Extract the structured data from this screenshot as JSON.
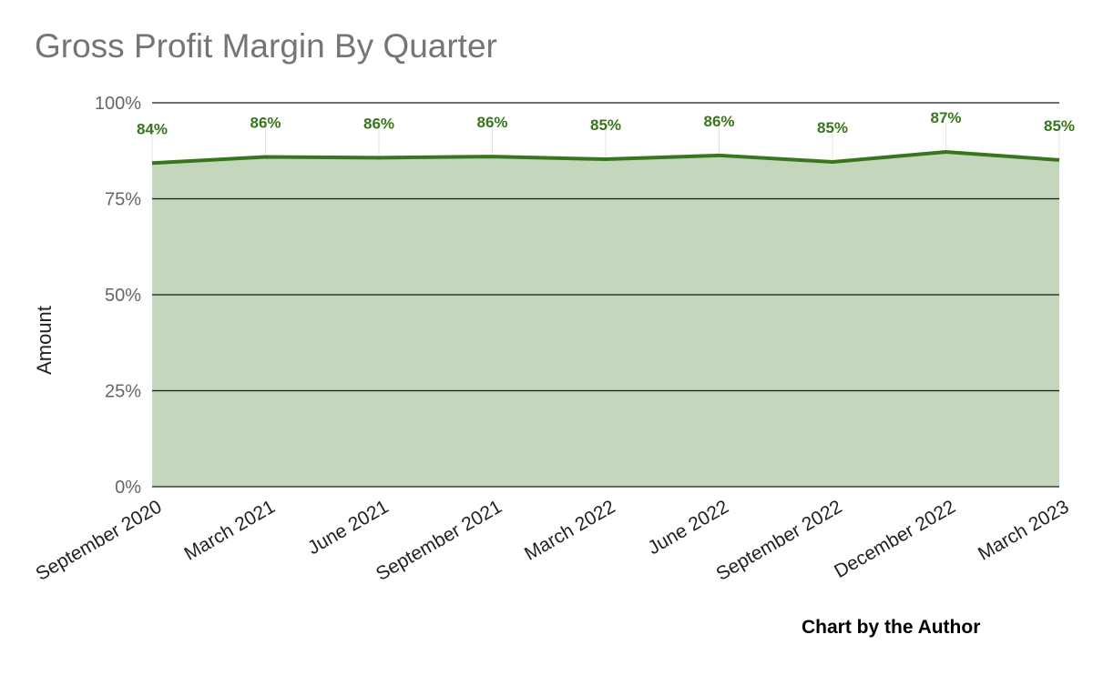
{
  "chart_data": {
    "type": "area",
    "title": "Gross Profit Margin By Quarter",
    "xlabel": "",
    "ylabel": "Amount",
    "categories": [
      "September 2020",
      "March 2021",
      "June 2021",
      "September 2021",
      "March 2022",
      "June 2022",
      "September 2022",
      "December 2022",
      "March 2023"
    ],
    "series": [
      {
        "values": [
          84.3,
          85.9,
          85.7,
          86.0,
          85.3,
          86.3,
          84.6,
          87.2,
          85.1
        ],
        "data_labels": [
          "84%",
          "86%",
          "86%",
          "86%",
          "85%",
          "86%",
          "85%",
          "87%",
          "85%"
        ]
      }
    ],
    "y_ticks": [
      0,
      25,
      50,
      75,
      100
    ],
    "y_tick_labels": [
      "0%",
      "25%",
      "50%",
      "75%",
      "100%"
    ],
    "ylim": [
      0,
      100
    ],
    "grid": true,
    "legend": "none",
    "colors": {
      "line": "#38761d",
      "fill": "#c4d6bb",
      "data_label": "#38761d",
      "gridline": "#1a1a1a",
      "axis_text": "#666666",
      "title": "#757575"
    }
  },
  "footer": {
    "credit": "Chart by the Author"
  }
}
